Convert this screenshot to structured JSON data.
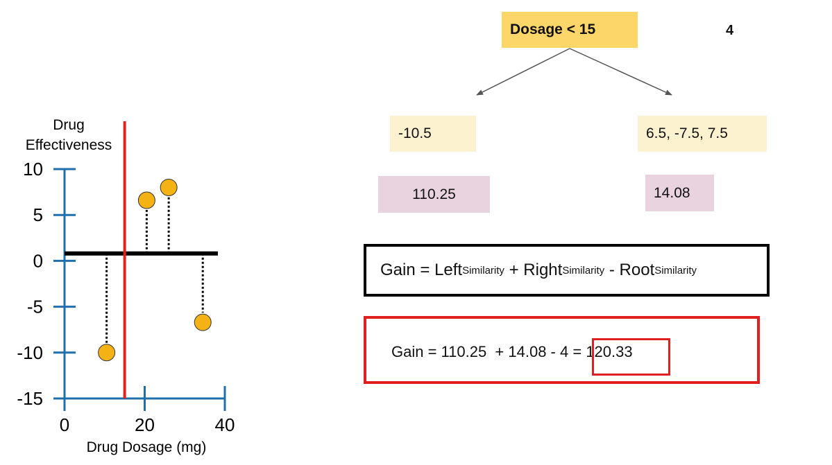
{
  "tree": {
    "root_label": "Dosage < 15",
    "root_similarity": "4",
    "left_residuals": "-10.5",
    "right_residuals": "6.5, -7.5, 7.5",
    "left_similarity": "110.25",
    "right_similarity": "14.08"
  },
  "formula": {
    "gain": "Gain",
    "equals": "=",
    "left": "Left",
    "plus": "+",
    "right": "Right",
    "minus": "-",
    "root": "Root",
    "subscript": "Similarity"
  },
  "calculation": {
    "text": "Gain = 110.25  + 14.08 - 4",
    "result": "= 120.33"
  },
  "colors": {
    "axis": "#1f6fad",
    "split_line": "#e8201a",
    "point_fill": "#f4b215",
    "root_fill": "#fcd668",
    "residual_fill": "#fdf2cf",
    "similarity_fill": "#e8d3de"
  },
  "chart_data": {
    "type": "scatter",
    "ylabel_lines": [
      "Drug",
      "Effectiveness"
    ],
    "xlabel": "Drug Dosage (mg)",
    "xlim": [
      0,
      40
    ],
    "ylim": [
      -15,
      10
    ],
    "x_ticks": [
      0,
      20,
      40
    ],
    "y_ticks": [
      10,
      5,
      0,
      -5,
      -10,
      -15
    ],
    "baseline": 0.8,
    "split_x": 15,
    "points": [
      {
        "x": 10.5,
        "y": -10
      },
      {
        "x": 20.5,
        "y": 6.6
      },
      {
        "x": 26,
        "y": 8
      },
      {
        "x": 34.5,
        "y": -6.7
      }
    ]
  }
}
